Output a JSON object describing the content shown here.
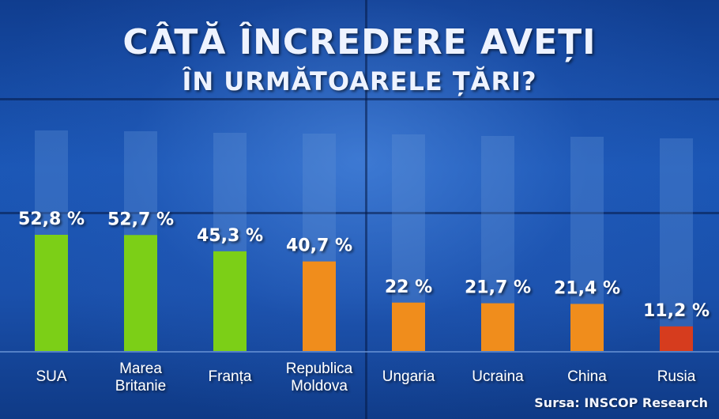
{
  "title": "CÂTĂ ÎNCREDERE AVEȚI",
  "subtitle": "ÎN URMĂTOARELE ȚĂRI?",
  "source": "Sursa: INSCOP Research",
  "colors": {
    "green": "#7ccf17",
    "orange": "#f08d1c",
    "red": "#d63c1e",
    "track": "#5f8fd4"
  },
  "chart_data": {
    "type": "bar",
    "title": "CÂTĂ ÎNCREDERE AVEȚI ÎN URMĂTOARELE ȚĂRI?",
    "categories": [
      "SUA",
      "Marea Britanie",
      "Franța",
      "Republica Moldova",
      "Ungaria",
      "Ucraina",
      "China",
      "Rusia"
    ],
    "category_lines": [
      [
        "SUA"
      ],
      [
        "Marea",
        "Britanie"
      ],
      [
        "Franța"
      ],
      [
        "Republica",
        "Moldova"
      ],
      [
        "Ungaria"
      ],
      [
        "Ucraina"
      ],
      [
        "China"
      ],
      [
        "Rusia"
      ]
    ],
    "values": [
      52.8,
      52.7,
      45.3,
      40.7,
      22,
      21.7,
      21.4,
      11.2
    ],
    "value_labels": [
      "52,8 %",
      "52,7 %",
      "45,3 %",
      "40,7 %",
      "22 %",
      "21,7 %",
      "21,4 %",
      "11,2 %"
    ],
    "bar_colors": [
      "green",
      "green",
      "green",
      "orange",
      "orange",
      "orange",
      "orange",
      "red"
    ],
    "ylim": [
      0,
      100
    ],
    "grid": false,
    "legend": "none"
  }
}
